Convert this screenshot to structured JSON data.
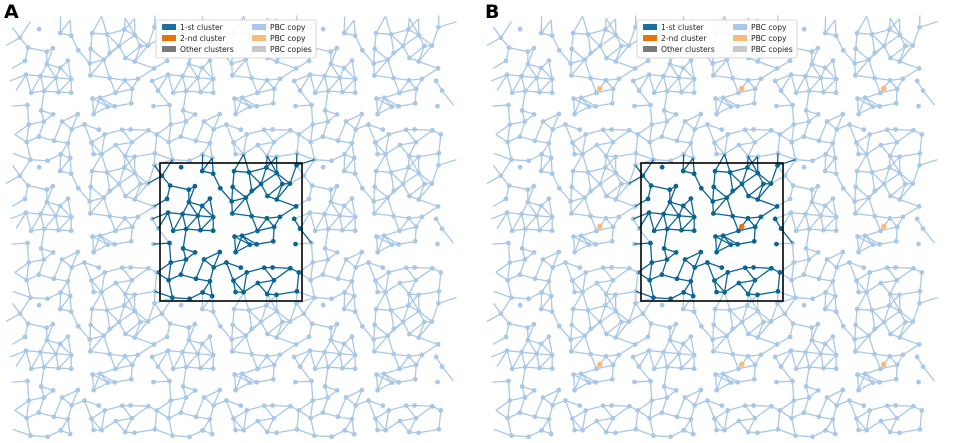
{
  "panels": [
    {
      "id": "A",
      "label": "A",
      "legend": [
        {
          "label": "1-st cluster",
          "color": "#1a6ea0"
        },
        {
          "label": "2-nd cluster",
          "color": "#e8720c"
        },
        {
          "label": "Other clusters",
          "color": "#7a7a7a"
        },
        {
          "label": "PBC copy",
          "color": "#a9c8e8"
        },
        {
          "label": "PBC copy",
          "color": "#f8bb7c"
        },
        {
          "label": "PBC copies",
          "color": "#c8c8c8"
        }
      ],
      "second_cluster_markers": false
    },
    {
      "id": "B",
      "label": "B",
      "legend": [
        {
          "label": "1-st cluster",
          "color": "#1a6ea0"
        },
        {
          "label": "2-nd cluster",
          "color": "#e8720c"
        },
        {
          "label": "Other clusters",
          "color": "#7a7a7a"
        },
        {
          "label": "PBC copy",
          "color": "#a9c8e8"
        },
        {
          "label": "PBC copy",
          "color": "#f8bb7c"
        },
        {
          "label": "PBC copies",
          "color": "#c8c8c8"
        }
      ],
      "second_cluster_markers": true
    }
  ],
  "colors": {
    "cluster_main": "#0b6594",
    "pbc_copy": "#a9c8e8",
    "second_cluster": "#e8720c",
    "second_cluster_copy": "#f8bb7c",
    "box": "#000000"
  }
}
